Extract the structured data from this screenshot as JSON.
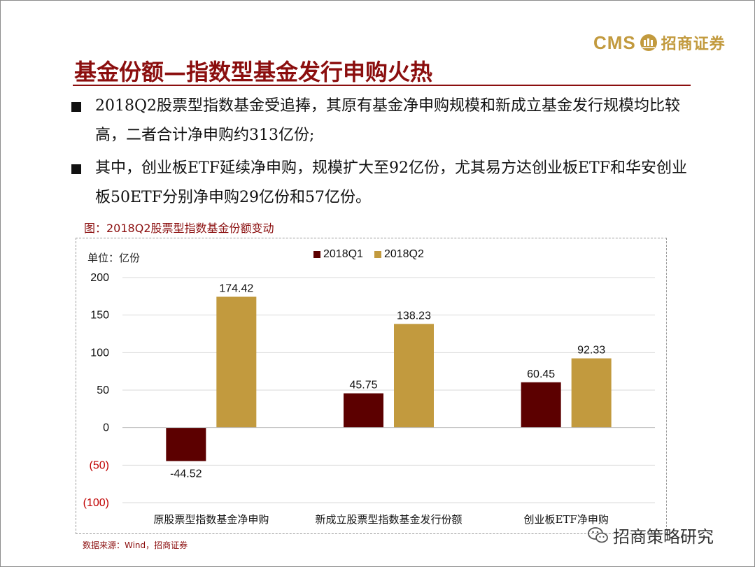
{
  "logo": {
    "latin": "CMS",
    "chinese": "招商证券"
  },
  "slide": {
    "title": "基金份额—指数型基金发行申购火热",
    "bullets": [
      "2018Q2股票型指数基金受追捧，其原有基金净申购规模和新成立基金发行规模均比较高，二者合计净申购约313亿份;",
      "其中，创业板ETF延续净申购，规模扩大至92亿份，尤其易方达创业板ETF和华安创业板50ETF分别净申购29亿份和57亿份。"
    ],
    "figure_caption": "图：2018Q2股票型指数基金份额变动",
    "source": "数据来源：Wind，招商证券",
    "watermark": "招商策略研究"
  },
  "colors": {
    "title": "#8b0e0e",
    "q1": "#5c0000",
    "q2": "#c29a3e",
    "negative_tick": "#c00000",
    "gold": "#c29a3e"
  },
  "chart_data": {
    "type": "bar",
    "unit_label": "单位：亿份",
    "categories": [
      "原股票型指数基金净申购",
      "新成立股票型指数基金发行份额",
      "创业板ETF净申购"
    ],
    "series": [
      {
        "name": "2018Q1",
        "color": "#5c0000",
        "values": [
          -44.52,
          45.75,
          60.45
        ],
        "labels": [
          "-44.52",
          "45.75",
          "60.45"
        ]
      },
      {
        "name": "2018Q2",
        "color": "#c29a3e",
        "values": [
          174.42,
          138.23,
          92.33
        ],
        "labels": [
          "174.42",
          "138.23",
          "92.33"
        ]
      }
    ],
    "yticks": [
      200,
      150,
      100,
      50,
      0,
      -50,
      -100
    ],
    "ytick_labels": [
      "200",
      "150",
      "100",
      "50",
      "0",
      "(50)",
      "(100)"
    ],
    "ylim": [
      -100,
      200
    ],
    "grid": true,
    "legend_position": "top-center"
  }
}
